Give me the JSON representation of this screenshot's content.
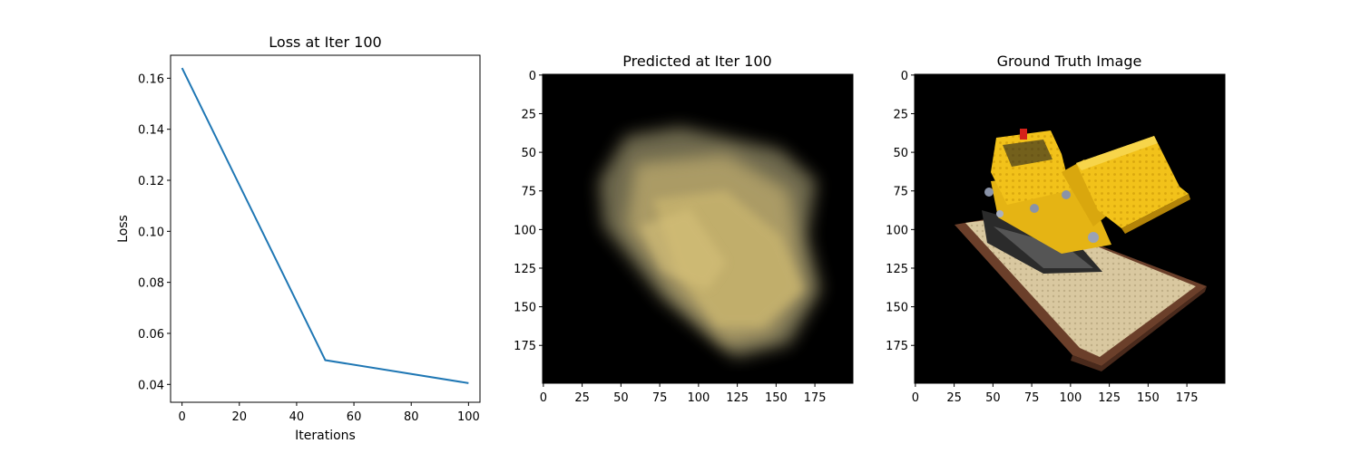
{
  "chart_data": [
    {
      "type": "line",
      "title": "Loss at Iter 100",
      "xlabel": "Iterations",
      "ylabel": "Loss",
      "xlim": [
        -4,
        104
      ],
      "ylim": [
        0.033,
        0.169
      ],
      "xticks": [
        0,
        20,
        40,
        60,
        80,
        100
      ],
      "yticks": [
        0.04,
        0.06,
        0.08,
        0.1,
        0.12,
        0.14,
        0.16
      ],
      "ytick_labels": [
        "0.04",
        "0.06",
        "0.08",
        "0.10",
        "0.12",
        "0.14",
        "0.16"
      ],
      "grid": false,
      "series": [
        {
          "color": "#1f77b4",
          "x": [
            0,
            50,
            100
          ],
          "y": [
            0.164,
            0.0495,
            0.0405
          ]
        }
      ]
    },
    {
      "type": "image",
      "title": "Predicted at Iter 100",
      "image_size": [
        200,
        200
      ],
      "xticks": [
        0,
        25,
        50,
        75,
        100,
        125,
        150,
        175
      ],
      "yticks": [
        0,
        25,
        50,
        75,
        100,
        125,
        150,
        175
      ],
      "content": "blurry pale yellow reconstruction on black background"
    },
    {
      "type": "image",
      "title": "Ground Truth Image",
      "image_size": [
        200,
        200
      ],
      "xticks": [
        0,
        25,
        50,
        75,
        100,
        125,
        150,
        175
      ],
      "yticks": [
        0,
        25,
        50,
        75,
        100,
        125,
        150,
        175
      ],
      "content": "yellow Lego bulldozer on a baseplate, black background"
    }
  ]
}
